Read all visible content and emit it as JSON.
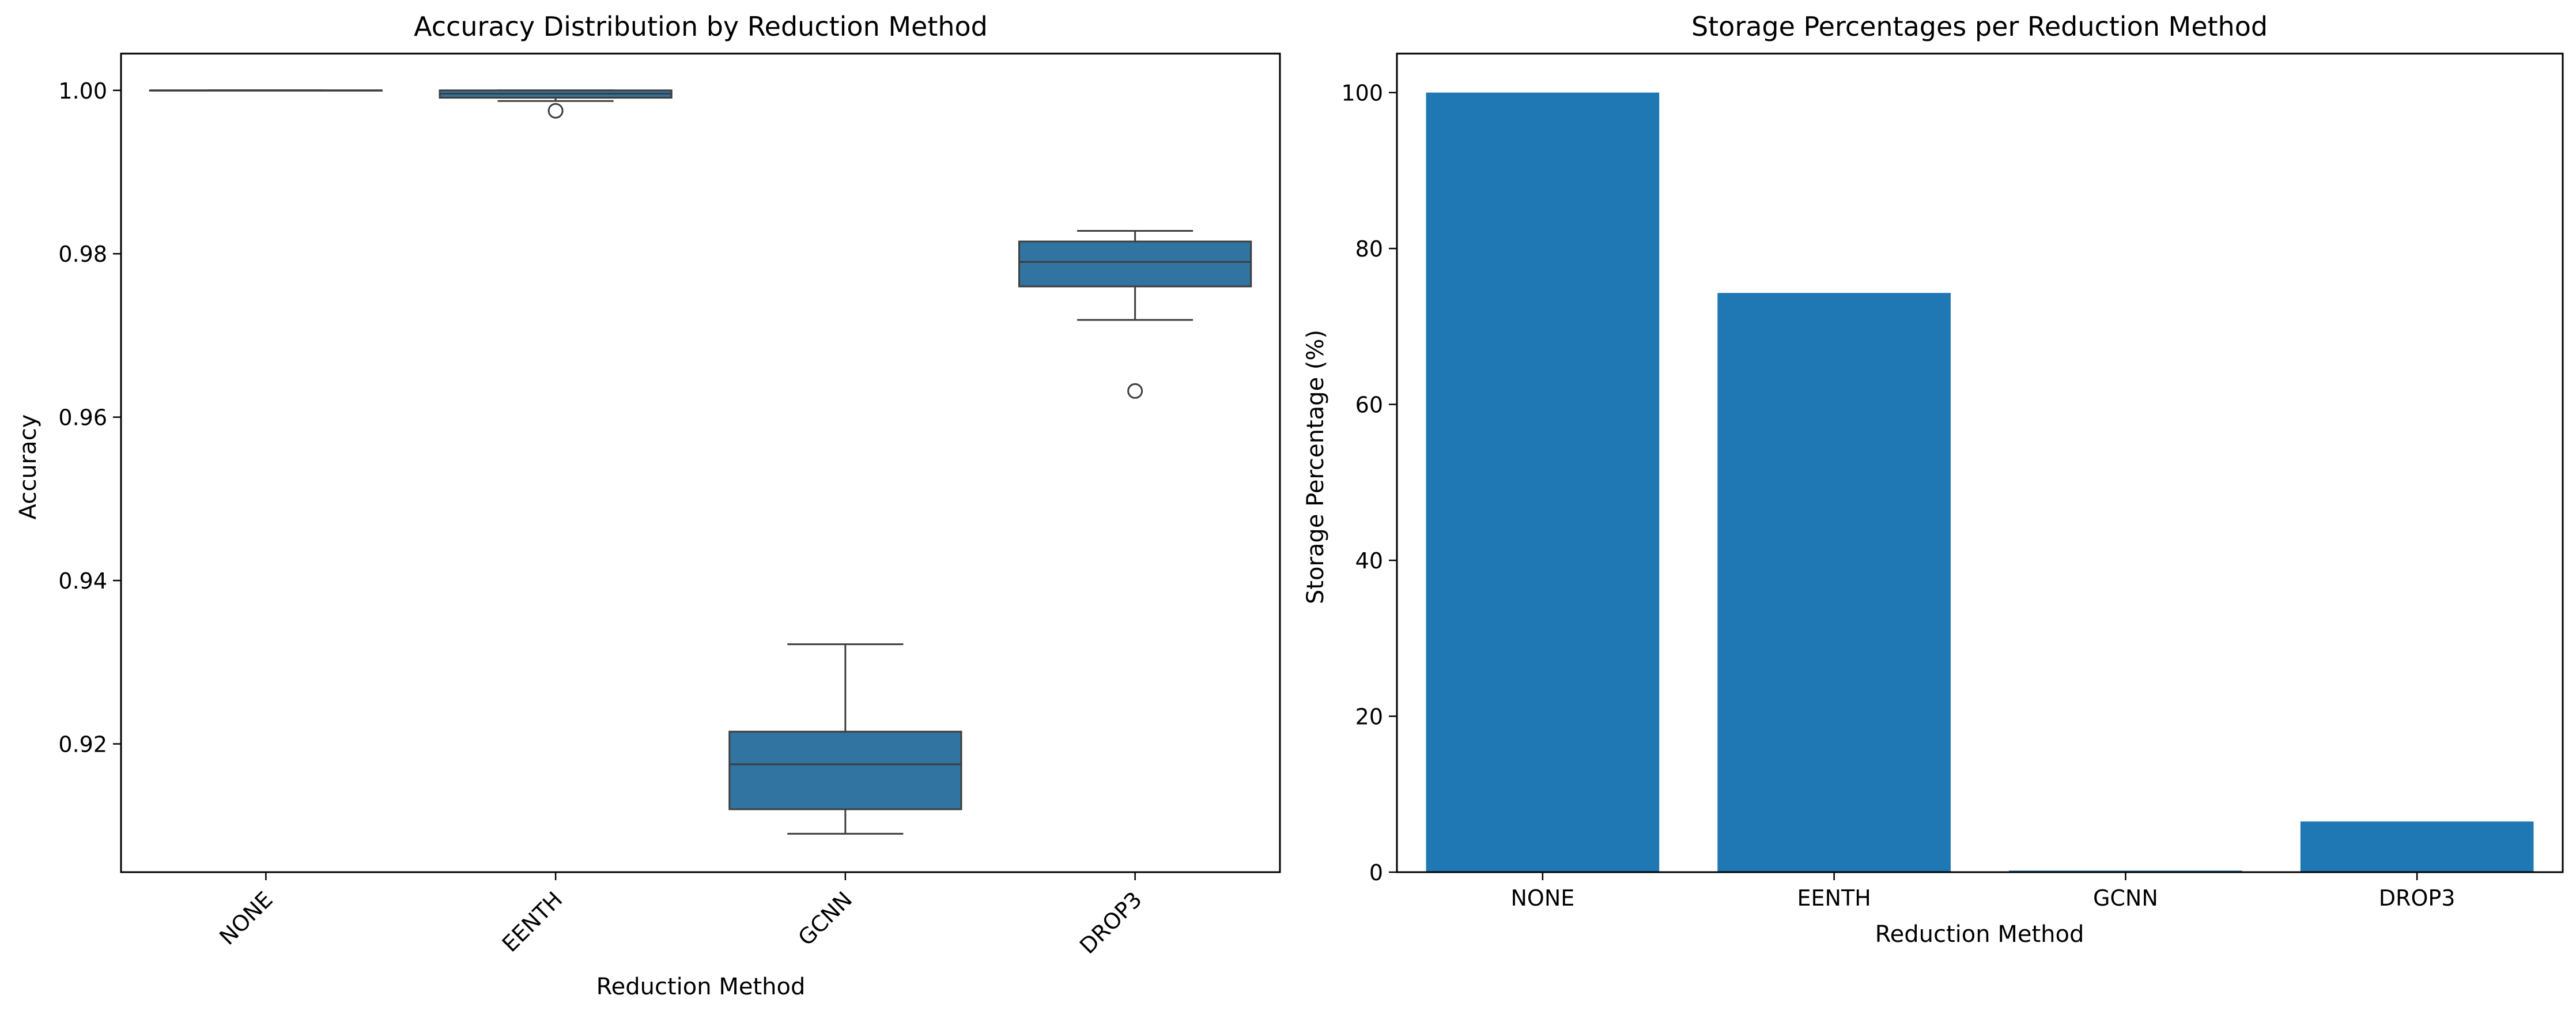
{
  "chart_data": [
    {
      "type": "box",
      "title": "Accuracy Distribution by Reduction Method",
      "xlabel": "Reduction Method",
      "ylabel": "Accuracy",
      "ylim": [
        0.9043,
        1.0045
      ],
      "yticks": [
        "0.92",
        "0.94",
        "0.96",
        "0.98",
        "1.00"
      ],
      "ytick_values": [
        0.92,
        0.94,
        0.96,
        0.98,
        1.0
      ],
      "categories": [
        "NONE",
        "EENTH",
        "GCNN",
        "DROP3"
      ],
      "xtick_rotation": 45,
      "box_color": "#3274a1",
      "boxes": [
        {
          "category": "NONE",
          "min": 1.0,
          "q1": 1.0,
          "median": 1.0,
          "q3": 1.0,
          "max": 1.0,
          "outliers": []
        },
        {
          "category": "EENTH",
          "min": 0.9987,
          "q1": 0.9991,
          "median": 0.9996,
          "q3": 1.0,
          "max": 1.0,
          "outliers": [
            0.9975
          ]
        },
        {
          "category": "GCNN",
          "min": 0.909,
          "q1": 0.912,
          "median": 0.9175,
          "q3": 0.9215,
          "max": 0.9322,
          "outliers": []
        },
        {
          "category": "DROP3",
          "min": 0.9719,
          "q1": 0.976,
          "median": 0.979,
          "q3": 0.9815,
          "max": 0.9828,
          "outliers": [
            0.9632
          ]
        }
      ],
      "grid": false
    },
    {
      "type": "bar",
      "title": "Storage Percentages per Reduction Method",
      "xlabel": "Reduction Method",
      "ylabel": "Storage Percentage (%)",
      "ylim": [
        0,
        105
      ],
      "yticks": [
        "0",
        "20",
        "40",
        "60",
        "80",
        "100"
      ],
      "ytick_values": [
        0,
        20,
        40,
        60,
        80,
        100
      ],
      "categories": [
        "NONE",
        "EENTH",
        "GCNN",
        "DROP3"
      ],
      "values": [
        100,
        74.3,
        0.2,
        6.5
      ],
      "bar_color": "#1f77b4",
      "grid": false
    }
  ]
}
